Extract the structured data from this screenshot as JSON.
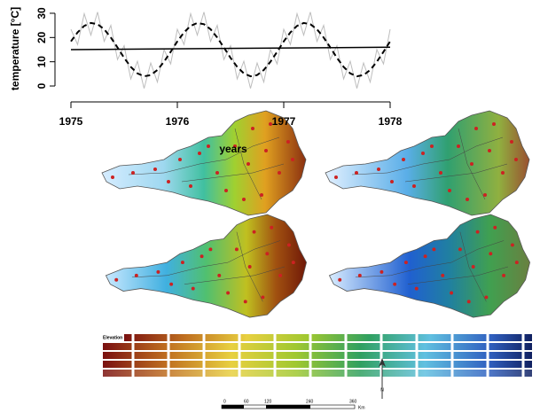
{
  "chart_data": {
    "type": "line",
    "y_label": "temperature [°C]",
    "x_label": "years",
    "x": [
      1975,
      1975.0625,
      1975.125,
      1975.1875,
      1975.25,
      1975.3125,
      1975.375,
      1975.4375,
      1975.5,
      1975.5625,
      1975.625,
      1975.6875,
      1975.75,
      1975.8125,
      1975.875,
      1975.9375,
      1976,
      1976.0625,
      1976.125,
      1976.1875,
      1976.25,
      1976.3125,
      1976.375,
      1976.4375,
      1976.5,
      1976.5625,
      1976.625,
      1976.6875,
      1976.75,
      1976.8125,
      1976.875,
      1976.9375,
      1977,
      1977.0625,
      1977.125,
      1977.1875,
      1977.25,
      1977.3125,
      1977.375,
      1977.4375,
      1977.5,
      1977.5625,
      1977.625,
      1977.6875,
      1977.75,
      1977.8125,
      1977.875,
      1977.9375,
      1978
    ],
    "series": [
      {
        "color": "#bdbdbd",
        "style": "solid",
        "width": 1,
        "values": [
          23.4,
          17.1,
          29.8,
          21.0,
          30.5,
          18.4,
          25.0,
          10.9,
          16.6,
          2.9,
          10.2,
          -1.0,
          9.5,
          1.6,
          15.0,
          9.1,
          23.4,
          17.1,
          29.8,
          21.0,
          30.5,
          18.4,
          25.0,
          10.9,
          16.6,
          2.9,
          10.2,
          -1.0,
          9.5,
          1.6,
          15.0,
          9.1,
          23.4,
          17.1,
          29.8,
          21.0,
          30.5,
          18.4,
          25.0,
          10.9,
          16.6,
          2.9,
          10.2,
          -1.0,
          9.5,
          1.6,
          15.0,
          9.1,
          23.4
        ]
      },
      {
        "color": "#000000",
        "style": "dashed",
        "width": 2,
        "values": [
          18.4,
          22.1,
          24.8,
          26.0,
          25.5,
          23.4,
          20.0,
          15.9,
          11.6,
          7.9,
          5.2,
          4.0,
          4.5,
          6.6,
          10.0,
          14.1,
          18.4,
          22.1,
          24.8,
          26.0,
          25.5,
          23.4,
          20.0,
          15.9,
          11.6,
          7.9,
          5.2,
          4.0,
          4.5,
          6.6,
          10.0,
          14.1,
          18.4,
          22.1,
          24.8,
          26.0,
          25.5,
          23.4,
          20.0,
          15.9,
          11.6,
          7.9,
          5.2,
          4.0,
          4.5,
          6.6,
          10.0,
          14.1,
          18.4
        ]
      },
      {
        "color": "#000000",
        "style": "solid",
        "width": 1.5,
        "x": [
          1975,
          1978
        ],
        "values": [
          15,
          16
        ]
      }
    ],
    "xlim": [
      1974.95,
      1978.05
    ],
    "xticks": [
      1975,
      1976,
      1977,
      1978
    ],
    "ylim": [
      -2,
      32
    ],
    "yticks": [
      0,
      10,
      20,
      30
    ]
  },
  "maps": {
    "legend_title": "Elevation",
    "scale_labels": [
      0,
      60,
      120,
      240,
      360
    ],
    "scale_unit": "Km",
    "north": "N"
  }
}
